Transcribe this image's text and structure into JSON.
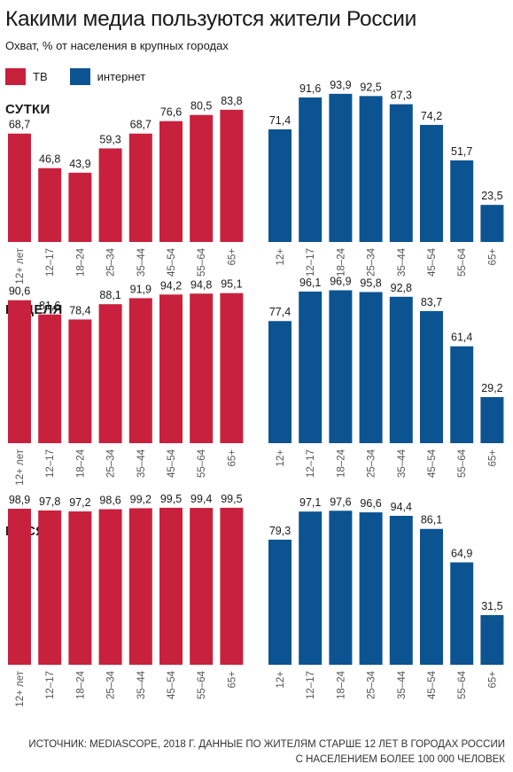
{
  "title": "Какими медиа пользуются жители России",
  "subtitle": "Охват, % от населения в крупных городах",
  "legend": [
    {
      "label": "ТВ",
      "color": "#c8213d"
    },
    {
      "label": "интернет",
      "color": "#0c5491"
    }
  ],
  "source": {
    "line1": "ИСТОЧНИК: MEDIASCOPE, 2018 Г. ДАННЫЕ ПО ЖИТЕЛЯМ СТАРШЕ 12 ЛЕТ В ГОРОДАХ РОССИИ",
    "line2": "С НАСЕЛЕНИЕМ БОЛЕЕ 100 000 ЧЕЛОВЕК"
  },
  "chart_data": [
    {
      "type": "bar",
      "panel": "СУТКИ",
      "series": "ТВ",
      "color": "#c8213d",
      "categories": [
        "12+ лет",
        "12–17",
        "18–24",
        "25–34",
        "35–44",
        "45–54",
        "55–64",
        "65+"
      ],
      "values": [
        68.7,
        46.8,
        43.9,
        59.3,
        68.7,
        76.6,
        80.5,
        83.8
      ],
      "labels": [
        "68,7",
        "46,8",
        "43,9",
        "59,3",
        "68,7",
        "76,6",
        "80,5",
        "83,8"
      ]
    },
    {
      "type": "bar",
      "panel": "СУТКИ",
      "series": "интернет",
      "color": "#0c5491",
      "categories": [
        "12+",
        "12–17",
        "18–24",
        "25–34",
        "35–44",
        "45–54",
        "55–64",
        "65+"
      ],
      "values": [
        71.4,
        91.6,
        93.9,
        92.5,
        87.3,
        74.2,
        51.7,
        23.5
      ],
      "labels": [
        "71,4",
        "91,6",
        "93,9",
        "92,5",
        "87,3",
        "74,2",
        "51,7",
        "23,5"
      ]
    },
    {
      "type": "bar",
      "panel": "НЕДЕЛЯ",
      "series": "ТВ",
      "color": "#c8213d",
      "categories": [
        "12+ лет",
        "12–17",
        "18–24",
        "25–34",
        "35–44",
        "45–54",
        "55–64",
        "65+"
      ],
      "values": [
        90.6,
        81.6,
        78.4,
        88.1,
        91.9,
        94.2,
        94.8,
        95.1
      ],
      "labels": [
        "90,6",
        "81,6",
        "78,4",
        "88,1",
        "91,9",
        "94,2",
        "94,8",
        "95,1"
      ]
    },
    {
      "type": "bar",
      "panel": "НЕДЕЛЯ",
      "series": "интернет",
      "color": "#0c5491",
      "categories": [
        "12+",
        "12–17",
        "18–24",
        "25–34",
        "35–44",
        "45–54",
        "55–64",
        "65+"
      ],
      "values": [
        77.4,
        96.1,
        96.9,
        95.8,
        92.8,
        83.7,
        61.4,
        29.2
      ],
      "labels": [
        "77,4",
        "96,1",
        "96,9",
        "95,8",
        "92,8",
        "83,7",
        "61,4",
        "29,2"
      ]
    },
    {
      "type": "bar",
      "panel": "МЕСЯЦ",
      "series": "ТВ",
      "color": "#c8213d",
      "categories": [
        "12+ лет",
        "12–17",
        "18–24",
        "25–34",
        "35–44",
        "45–54",
        "55–64",
        "65+"
      ],
      "values": [
        98.9,
        97.8,
        97.2,
        98.6,
        99.2,
        99.5,
        99.4,
        99.5
      ],
      "labels": [
        "98,9",
        "97,8",
        "97,2",
        "98,6",
        "99,2",
        "99,5",
        "99,4",
        "99,5"
      ]
    },
    {
      "type": "bar",
      "panel": "МЕСЯЦ",
      "series": "интернет",
      "color": "#0c5491",
      "categories": [
        "12+",
        "12–17",
        "18–24",
        "25–34",
        "35–44",
        "45–54",
        "55–64",
        "65+"
      ],
      "values": [
        79.3,
        97.1,
        97.6,
        96.6,
        94.4,
        86.1,
        64.9,
        31.5
      ],
      "labels": [
        "79,3",
        "97,1",
        "97,6",
        "96,6",
        "94,4",
        "86,1",
        "64,9",
        "31,5"
      ]
    }
  ]
}
